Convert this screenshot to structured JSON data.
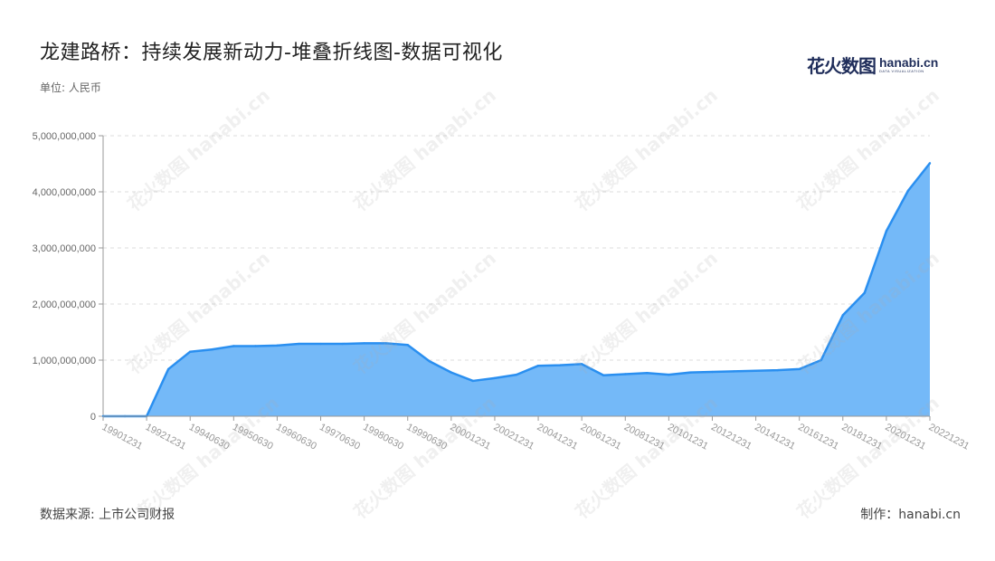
{
  "title": "龙建路桥：持续发展新动力-堆叠折线图-数据可视化",
  "unit": "单位: 人民币",
  "source": "数据来源: 上市公司财报",
  "maker": "制作：hanabi.cn",
  "logo": {
    "cn": "花火数图",
    "en": "hanabi.cn",
    "sub": "DATA VISUALIZATION"
  },
  "watermark": "花火数图 hanabi.cn",
  "colors": {
    "area": "#74b9f8",
    "line": "#2a8ff0",
    "grid": "#dddddd"
  },
  "chart_data": {
    "type": "area",
    "ylim": [
      0,
      5000000000
    ],
    "yticks": [
      0,
      1000000000,
      2000000000,
      3000000000,
      4000000000,
      5000000000
    ],
    "ytick_labels": [
      "0",
      "1,000,000,000",
      "2,000,000,000",
      "3,000,000,000",
      "4,000,000,000",
      "5,000,000,000"
    ],
    "grid": true,
    "x": [
      "19901231",
      "19911231",
      "19921231",
      "19931231",
      "19940630",
      "19941231",
      "19950630",
      "19951231",
      "19960630",
      "19961231",
      "19970630",
      "19971231",
      "19980630",
      "19981231",
      "19990630",
      "19991231",
      "20001231",
      "20011231",
      "20021231",
      "20031231",
      "20041231",
      "20051231",
      "20061231",
      "20071231",
      "20081231",
      "20091231",
      "20101231",
      "20111231",
      "20121231",
      "20131231",
      "20141231",
      "20151231",
      "20161231",
      "20171231",
      "20181231",
      "20191231",
      "20201231",
      "20211231",
      "20221231"
    ],
    "xtick_labels": [
      "19901231",
      "19921231",
      "19940630",
      "19950630",
      "19960630",
      "19970630",
      "19980630",
      "19990630",
      "20001231",
      "20021231",
      "20041231",
      "20061231",
      "20081231",
      "20101231",
      "20121231",
      "20141231",
      "20161231",
      "20181231",
      "20201231",
      "20221231"
    ],
    "values": [
      0,
      0,
      0,
      840000000,
      1150000000,
      1190000000,
      1250000000,
      1250000000,
      1260000000,
      1290000000,
      1290000000,
      1290000000,
      1300000000,
      1300000000,
      1270000000,
      980000000,
      780000000,
      630000000,
      680000000,
      740000000,
      900000000,
      910000000,
      930000000,
      730000000,
      750000000,
      770000000,
      740000000,
      780000000,
      790000000,
      800000000,
      810000000,
      820000000,
      840000000,
      1000000000,
      1800000000,
      2200000000,
      3300000000,
      4020000000,
      4510000000
    ]
  }
}
